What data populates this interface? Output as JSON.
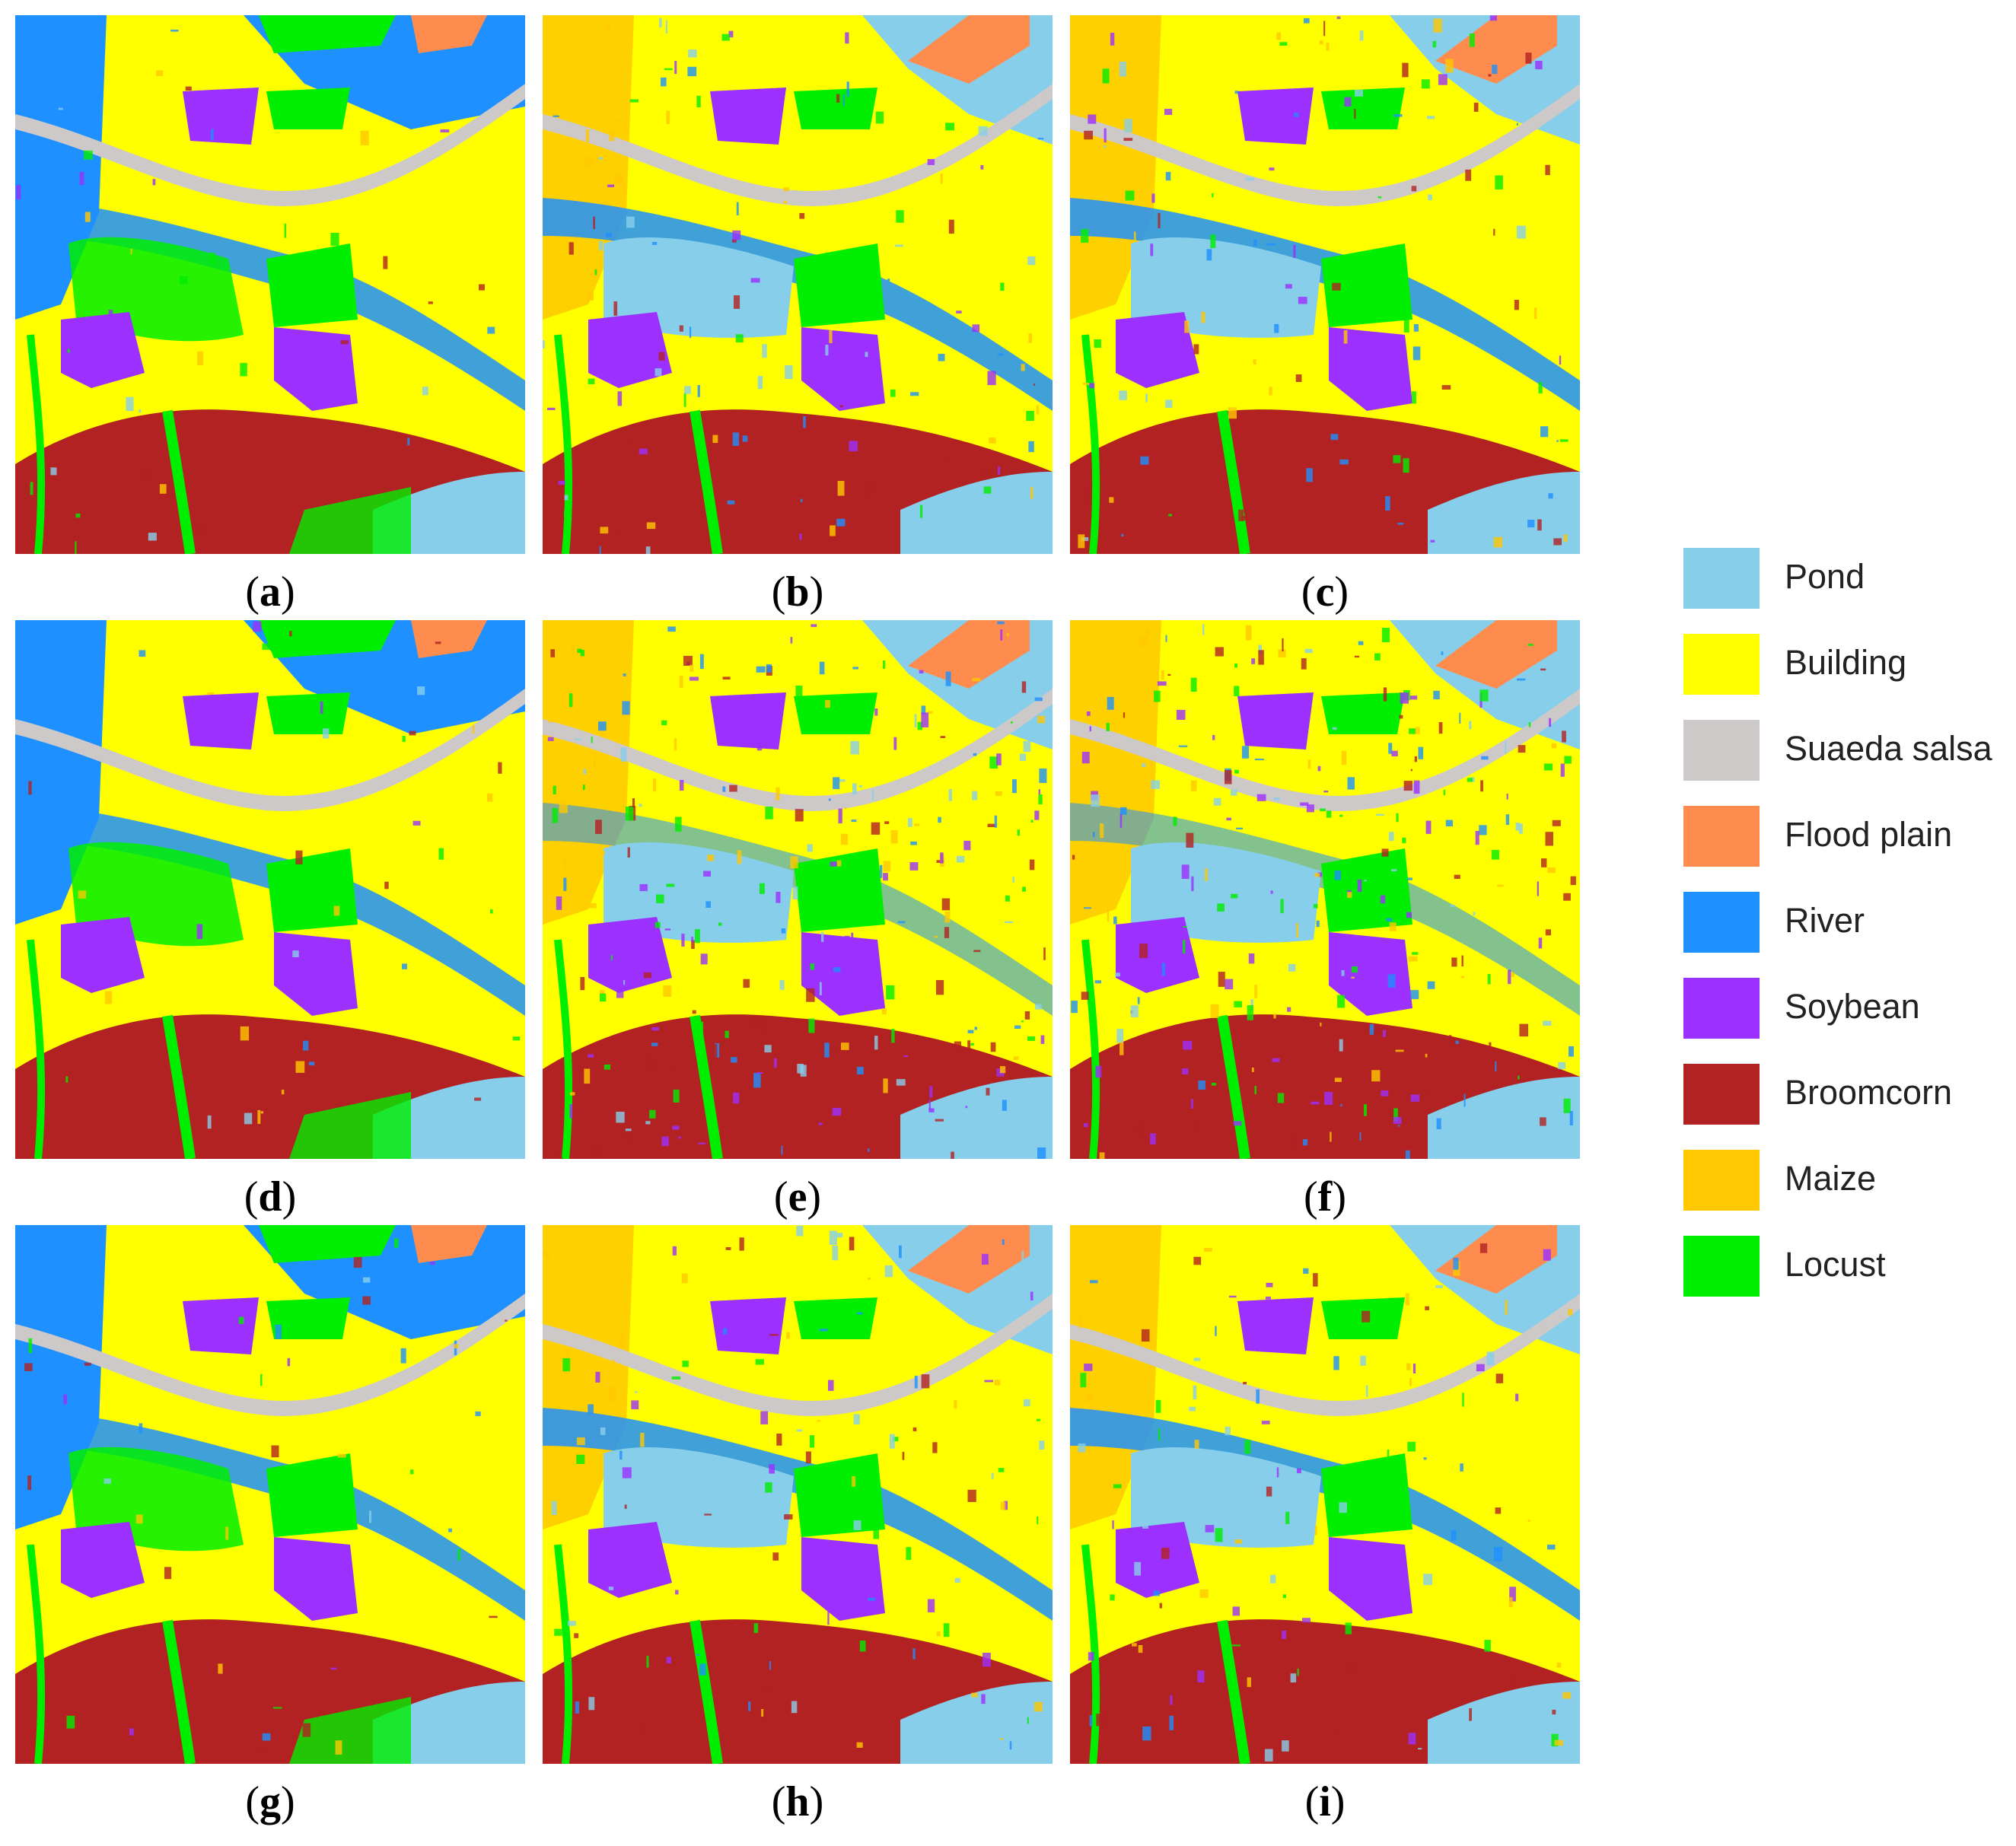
{
  "classes": [
    {
      "label": "Pond",
      "color": "#87ceeb"
    },
    {
      "label": "Building",
      "color": "#ffff00"
    },
    {
      "label": "Suaeda salsa",
      "color": "#cdc9c9"
    },
    {
      "label": "Flood plain",
      "color": "#ff8c4f"
    },
    {
      "label": "River",
      "color": "#1e90ff"
    },
    {
      "label": "Soybean",
      "color": "#9b30ff"
    },
    {
      "label": "Broomcorn",
      "color": "#b22222"
    },
    {
      "label": "Maize",
      "color": "#ffc800"
    },
    {
      "label": "Locust",
      "color": "#00ee00"
    }
  ],
  "panels": [
    {
      "caption": "a",
      "variant": "gt"
    },
    {
      "caption": "b",
      "variant": "clean"
    },
    {
      "caption": "c",
      "variant": "clean"
    },
    {
      "caption": "d",
      "variant": "gt"
    },
    {
      "caption": "e",
      "variant": "noisy"
    },
    {
      "caption": "f",
      "variant": "noisy"
    },
    {
      "caption": "g",
      "variant": "gt"
    },
    {
      "caption": "h",
      "variant": "clean"
    },
    {
      "caption": "i",
      "variant": "clean"
    }
  ]
}
